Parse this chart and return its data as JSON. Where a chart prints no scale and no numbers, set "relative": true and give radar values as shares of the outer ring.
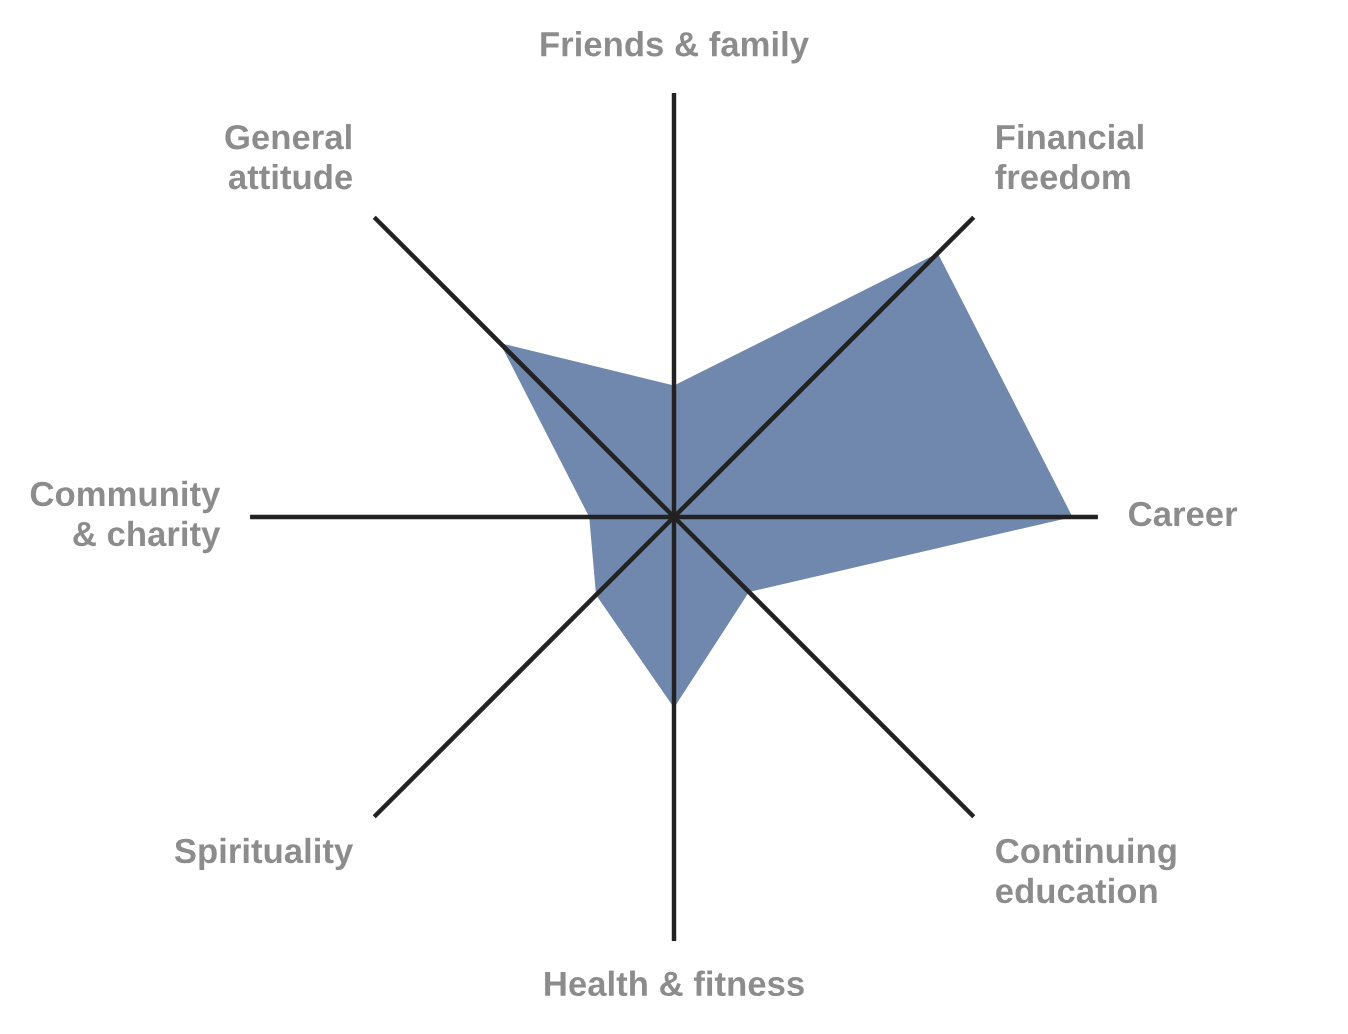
{
  "chart_data": {
    "type": "radar",
    "relative": true,
    "categories": [
      "Friends & family",
      "Financial\nfreedom",
      "Career",
      "Continuing\neducation",
      "Health & fitness",
      "Spirituality",
      "Community\n& charity",
      "General\nattitude"
    ],
    "series": [
      {
        "color": "#7088ad",
        "values": [
          0.31,
          0.88,
          0.94,
          0.25,
          0.45,
          0.26,
          0.2,
          0.58
        ]
      }
    ],
    "legend": false
  }
}
